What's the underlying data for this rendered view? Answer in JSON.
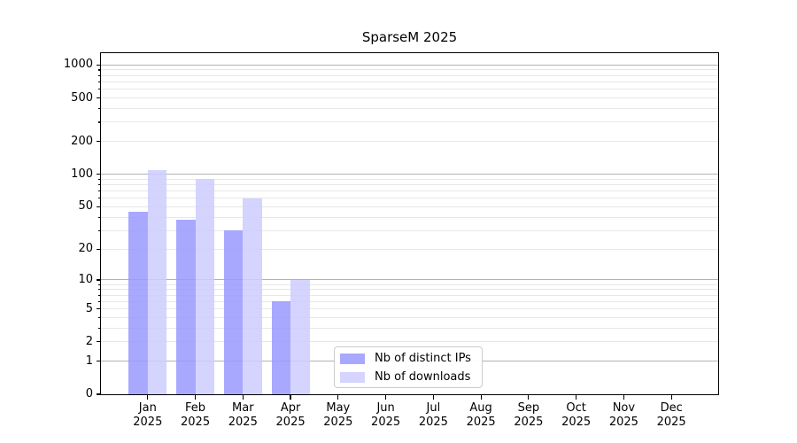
{
  "chart_data": {
    "type": "bar",
    "title": "SparseM 2025",
    "categories": [
      "Jan 2025",
      "Feb 2025",
      "Mar 2025",
      "Apr 2025",
      "May 2025",
      "Jun 2025",
      "Jul 2025",
      "Aug 2025",
      "Sep 2025",
      "Oct 2025",
      "Nov 2025",
      "Dec 2025"
    ],
    "series": [
      {
        "name": "Nb of distinct IPs",
        "color": "#9999ff",
        "opacity": 0.85,
        "values": [
          45,
          38,
          30,
          6,
          0,
          0,
          0,
          0,
          0,
          0,
          0,
          0
        ]
      },
      {
        "name": "Nb of downloads",
        "color": "#ccccff",
        "opacity": 0.85,
        "values": [
          110,
          90,
          60,
          10,
          0,
          0,
          0,
          0,
          0,
          0,
          0,
          0
        ]
      }
    ],
    "xlabel": "",
    "ylabel": "",
    "yscale": "log1p",
    "y_ticks": [
      0,
      1,
      2,
      5,
      10,
      20,
      50,
      100,
      200,
      500,
      1000
    ],
    "y_minor_gridlines": [
      2,
      3,
      4,
      5,
      6,
      7,
      8,
      9,
      20,
      30,
      40,
      50,
      60,
      70,
      80,
      90,
      200,
      300,
      400,
      500,
      600,
      700,
      800,
      900
    ],
    "y_major_gridlines": [
      1,
      10,
      100,
      1000
    ],
    "ylim": [
      0,
      1280
    ],
    "grid": true,
    "legend_position": "lower center"
  },
  "colors": {
    "major_grid": "#b2b2b2",
    "minor_grid": "#e7e7e7",
    "axis": "#000000",
    "background": "#ffffff"
  }
}
